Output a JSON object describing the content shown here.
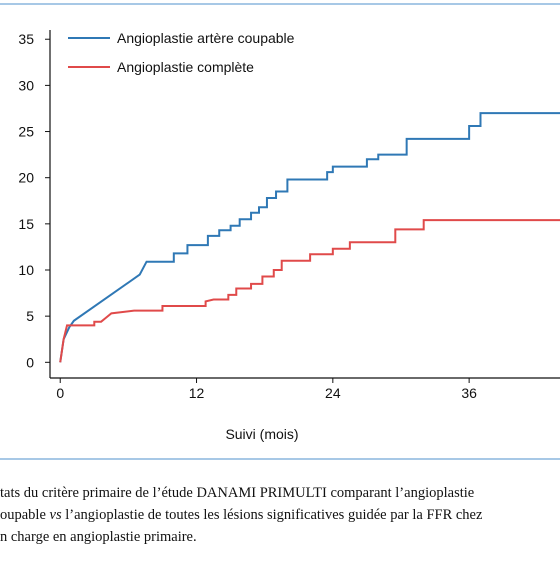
{
  "chart_data": {
    "type": "line",
    "x_label": "Suivi (mois)",
    "xlim": [
      -0.9,
      44
    ],
    "xticks": [
      0,
      12,
      24,
      36
    ],
    "ylim": [
      -1.7,
      36
    ],
    "yticks": [
      0,
      5,
      10,
      15,
      20,
      25,
      30,
      35
    ],
    "legend": "upper left",
    "series": [
      {
        "name": "Angioplastie artère coupable",
        "color": "#2f78b5",
        "x": [
          0,
          0.3,
          0.8,
          1.2,
          7,
          7.6,
          10,
          10,
          11.2,
          11.2,
          13,
          13,
          14,
          14,
          15,
          15,
          15.8,
          15.8,
          16.8,
          16.8,
          17.5,
          17.5,
          18.2,
          18.2,
          19,
          19,
          20,
          20,
          23.5,
          23.5,
          24,
          24,
          27,
          27,
          28,
          28,
          30.5,
          30.5,
          36,
          36,
          37,
          37,
          44
        ],
        "values": [
          0,
          2.5,
          3.8,
          4.5,
          9.5,
          10.9,
          10.9,
          11.8,
          11.8,
          12.7,
          12.7,
          13.7,
          13.7,
          14.3,
          14.3,
          14.8,
          14.8,
          15.5,
          15.5,
          16.2,
          16.2,
          16.8,
          16.8,
          17.8,
          17.8,
          18.5,
          18.5,
          19.8,
          19.8,
          20.6,
          20.6,
          21.2,
          21.2,
          22,
          22,
          22.5,
          22.5,
          24.2,
          24.2,
          25.6,
          25.6,
          27,
          27
        ]
      },
      {
        "name": "Angioplastie complète",
        "color": "#e04a4a",
        "x": [
          0,
          0.3,
          0.6,
          3,
          3,
          3.6,
          4,
          4.5,
          6.5,
          9,
          9,
          12.8,
          12.8,
          13.5,
          14.8,
          14.8,
          15.5,
          15.5,
          16.8,
          16.8,
          17.8,
          17.8,
          18.8,
          18.8,
          19.5,
          19.5,
          22,
          22,
          24,
          24,
          25.5,
          25.5,
          29.5,
          29.5,
          32,
          32,
          44
        ],
        "values": [
          0,
          2.5,
          4,
          4,
          4.4,
          4.4,
          4.8,
          5.3,
          5.6,
          5.6,
          6.1,
          6.1,
          6.6,
          6.8,
          6.8,
          7.3,
          7.3,
          8,
          8,
          8.5,
          8.5,
          9.3,
          9.3,
          10,
          10,
          11,
          11,
          11.7,
          11.7,
          12.3,
          12.3,
          13,
          13,
          14.4,
          14.4,
          15.4,
          15.4
        ]
      }
    ]
  },
  "caption": [
    [
      "tats du critère primaire de l’étude DANAMI PRIMULTI comparant l’angioplastie"
    ],
    [
      "oupable ",
      "vs",
      " l’angioplastie de toutes les lésions significatives guidée par la FFR chez"
    ],
    [
      "n charge en angioplastie primaire."
    ]
  ]
}
